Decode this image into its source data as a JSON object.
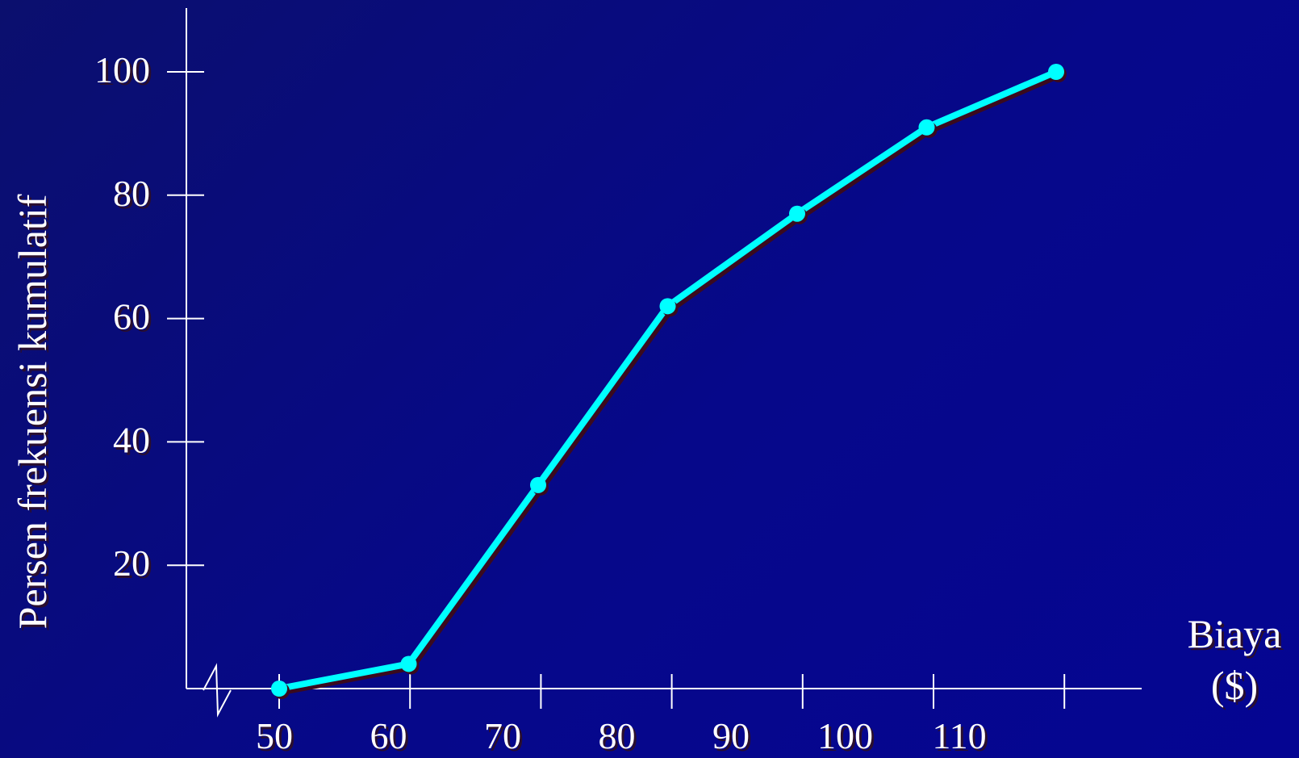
{
  "chart_data": {
    "type": "line",
    "title": "",
    "ylabel": "Persen frekuensi kumulatif",
    "xlabel_line1": "Biaya",
    "xlabel_line2": "($)",
    "y_ticks": [
      "20",
      "40",
      "60",
      "80",
      "100"
    ],
    "x_ticks": [
      "50",
      "60",
      "70",
      "80",
      "90",
      "100",
      "110"
    ],
    "series": [
      {
        "x": [
          50,
          60,
          70,
          80,
          90,
          100,
          110
        ],
        "y": [
          0,
          4,
          33,
          62,
          77,
          91,
          100
        ]
      }
    ],
    "ylim": [
      0,
      100
    ],
    "grid": false,
    "axis_break": true,
    "line_color": "#00ffff",
    "axis_color": "#ffffff",
    "background_color": "#06088a"
  }
}
